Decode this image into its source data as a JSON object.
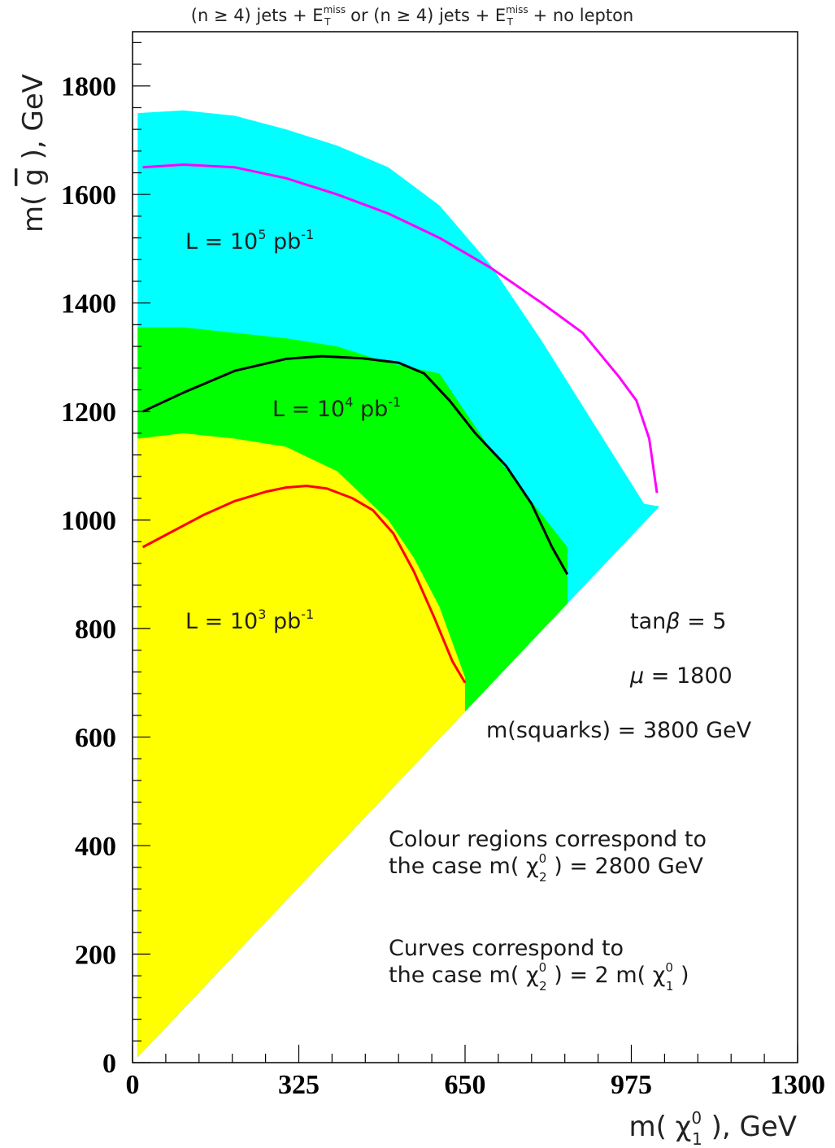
{
  "chart_data": {
    "type": "area",
    "title_parts": {
      "pre1": "(n ≥ 4) jets + E",
      "sup1": "miss",
      "sub1": "T",
      "mid": " or (n ≥ 4) jets + E",
      "sup2": "miss",
      "sub2": "T",
      "post": " + no lepton"
    },
    "xlabel": {
      "pre": "m( χ",
      "sup": "0",
      "sub": "1",
      "post": " ),   GeV"
    },
    "ylabel": {
      "pre": "m( ",
      "bar": "g",
      "post": " ),  GeV"
    },
    "xlim": [
      0,
      1300
    ],
    "ylim": [
      0,
      1900
    ],
    "x_major_ticks": [
      0,
      325,
      650,
      975,
      1300
    ],
    "y_major_ticks": [
      0,
      200,
      400,
      600,
      800,
      1000,
      1200,
      1400,
      1600,
      1800
    ],
    "x_tick_labels": [
      "0",
      "325",
      "650",
      "975",
      "1300"
    ],
    "y_tick_labels": [
      "0",
      "200",
      "400",
      "600",
      "800",
      "1000",
      "1200",
      "1400",
      "1600",
      "1800"
    ],
    "regions": [
      {
        "label": {
          "pre": "L  = 10",
          "sup": "5",
          "post": " pb",
          "sup2": "-1"
        },
        "color": "#00ffff",
        "upper": [
          [
            10,
            1750
          ],
          [
            100,
            1755
          ],
          [
            200,
            1745
          ],
          [
            300,
            1720
          ],
          [
            400,
            1690
          ],
          [
            500,
            1650
          ],
          [
            600,
            1580
          ],
          [
            700,
            1470
          ],
          [
            800,
            1330
          ],
          [
            900,
            1180
          ],
          [
            1000,
            1030
          ],
          [
            1030,
            1025
          ]
        ]
      },
      {
        "label": {
          "pre": "L  = 10",
          "sup": "4",
          "post": " pb",
          "sup2": "-1"
        },
        "color": "#00ff00",
        "upper": [
          [
            10,
            1355
          ],
          [
            100,
            1355
          ],
          [
            200,
            1345
          ],
          [
            300,
            1335
          ],
          [
            400,
            1320
          ],
          [
            500,
            1290
          ],
          [
            600,
            1270
          ],
          [
            700,
            1130
          ],
          [
            800,
            1010
          ],
          [
            850,
            950
          ],
          [
            850,
            850
          ]
        ]
      },
      {
        "label": {
          "pre": "L  = 10",
          "sup": "3",
          "post": " pb",
          "sup2": "-1"
        },
        "color": "#ffff00",
        "upper": [
          [
            10,
            1150
          ],
          [
            100,
            1160
          ],
          [
            200,
            1150
          ],
          [
            300,
            1135
          ],
          [
            400,
            1090
          ],
          [
            500,
            1000
          ],
          [
            550,
            930
          ],
          [
            600,
            840
          ],
          [
            650,
            710
          ],
          [
            650,
            650
          ]
        ]
      }
    ],
    "curves": [
      {
        "color": "#ff00ff",
        "points": [
          [
            20,
            1650
          ],
          [
            100,
            1655
          ],
          [
            200,
            1650
          ],
          [
            300,
            1630
          ],
          [
            400,
            1600
          ],
          [
            500,
            1565
          ],
          [
            600,
            1520
          ],
          [
            700,
            1465
          ],
          [
            800,
            1400
          ],
          [
            880,
            1345
          ],
          [
            950,
            1265
          ],
          [
            985,
            1220
          ],
          [
            1010,
            1150
          ],
          [
            1025,
            1050
          ]
        ]
      },
      {
        "color": "#000000",
        "points": [
          [
            20,
            1200
          ],
          [
            100,
            1235
          ],
          [
            200,
            1275
          ],
          [
            300,
            1297
          ],
          [
            370,
            1302
          ],
          [
            450,
            1298
          ],
          [
            520,
            1290
          ],
          [
            570,
            1270
          ],
          [
            620,
            1220
          ],
          [
            670,
            1160
          ],
          [
            730,
            1100
          ],
          [
            780,
            1030
          ],
          [
            820,
            950
          ],
          [
            850,
            900
          ]
        ]
      },
      {
        "color": "#ff0000",
        "points": [
          [
            20,
            950
          ],
          [
            80,
            980
          ],
          [
            140,
            1010
          ],
          [
            200,
            1035
          ],
          [
            260,
            1052
          ],
          [
            300,
            1060
          ],
          [
            340,
            1063
          ],
          [
            380,
            1058
          ],
          [
            430,
            1040
          ],
          [
            470,
            1018
          ],
          [
            510,
            975
          ],
          [
            550,
            905
          ],
          [
            590,
            820
          ],
          [
            625,
            740
          ],
          [
            650,
            700
          ]
        ]
      }
    ],
    "diagonal_boundary": [
      [
        10,
        10
      ],
      [
        1030,
        1025
      ]
    ],
    "annotations": [
      {
        "pre": "tan",
        "greek": "β",
        "post": " = 5"
      },
      {
        "pre": "",
        "greek": "μ",
        "post": " = 1800"
      },
      {
        "pre": "m(squarks) = 3800 GeV",
        "greek": "",
        "post": ""
      }
    ],
    "notes": [
      {
        "line1": "Colour regions correspond to",
        "line2_pre": "the case m( χ",
        "line2_sup": "0",
        "line2_sub": "2",
        "line2_post": " ) = 2800 GeV",
        "line2_sup_b": "",
        "line2_sub_b": "",
        "line2_post_b": ""
      },
      {
        "line1": "Curves correspond to",
        "line2_pre": "the case m( χ",
        "line2_sup": "0",
        "line2_sub": "2",
        "line2_post": " ) = 2 m( χ",
        "line2_sup_b": "0",
        "line2_sub_b": "1",
        "line2_post_b": " )"
      }
    ],
    "grid": false,
    "legend": "none"
  }
}
